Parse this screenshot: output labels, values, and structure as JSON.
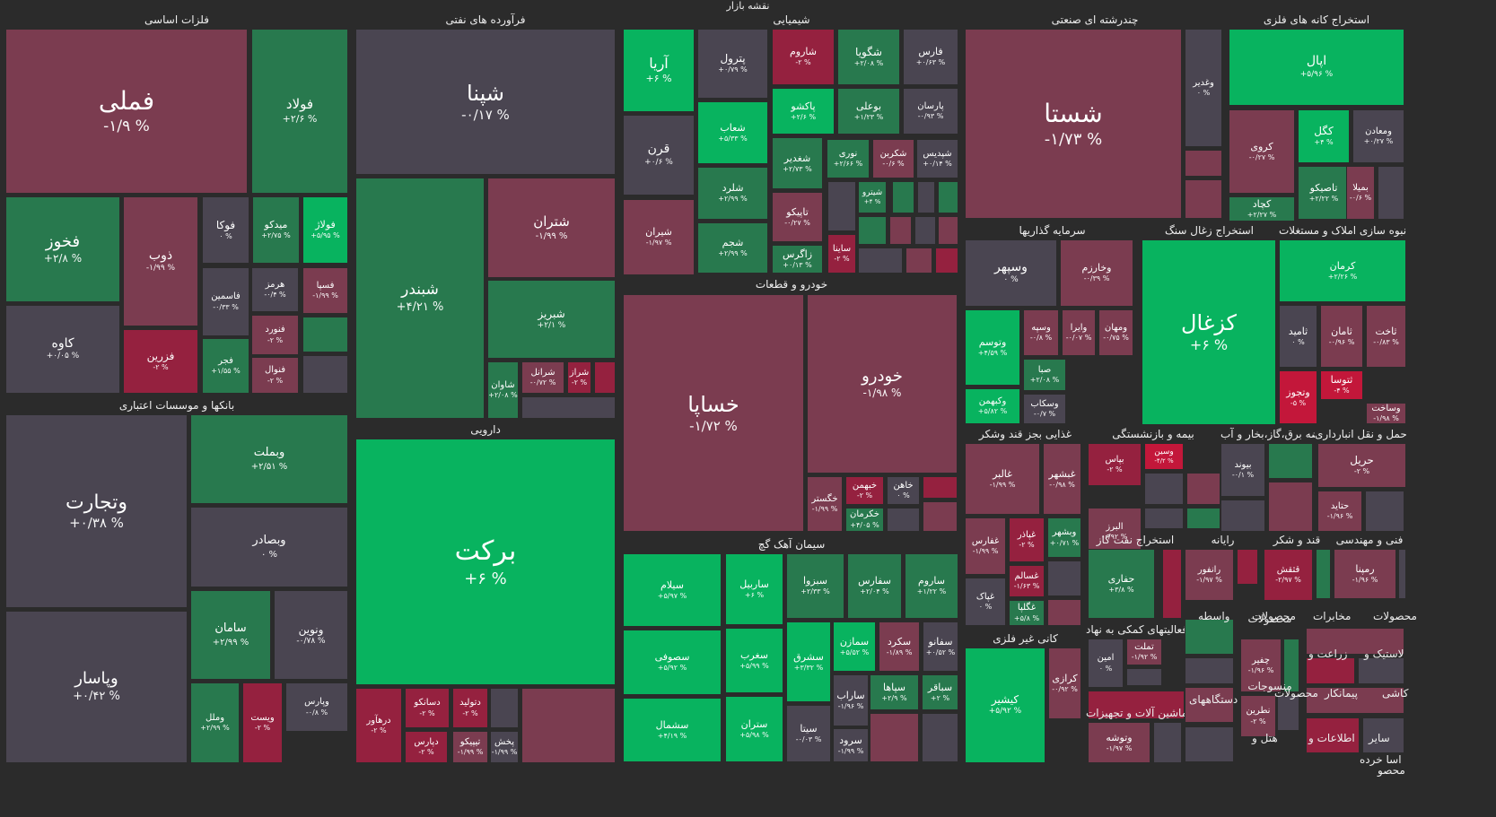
{
  "page_title": "نقشه بازار",
  "colors": {
    "bg": "#2b2b2b",
    "neutral": "#4a4551",
    "light_green": "#1f8a4c",
    "mid_green": "#28794e",
    "strong_green": "#08b35f",
    "light_red": "#7b3c50",
    "red": "#95213f",
    "strong_red": "#c3173a"
  },
  "sectors": [
    {
      "name": "فلزات اساسی",
      "tiles": [
        {
          "sym": "فملی",
          "chg": "-۱/۹ %"
        },
        {
          "sym": "فولاد",
          "chg": "+۲/۶ %"
        },
        {
          "sym": "فخوز",
          "chg": "+۲/۸ %"
        },
        {
          "sym": "ذوب",
          "chg": "-۱/۹۹ %"
        },
        {
          "sym": "فوکا",
          "chg": "۰ %"
        },
        {
          "sym": "میدکو",
          "chg": "+۲/۷۵ %"
        },
        {
          "sym": "فولاژ",
          "chg": "+۵/۹۵ %"
        },
        {
          "sym": "کاوه",
          "chg": "+۰/۰۵ %"
        },
        {
          "sym": "فزرین",
          "chg": "-۲ %"
        },
        {
          "sym": "فاسمین",
          "chg": "-۰/۳۳ %"
        },
        {
          "sym": "هرمز",
          "chg": "-۰/۴ %"
        },
        {
          "sym": "فسپا",
          "chg": "-۱/۹۹ %"
        },
        {
          "sym": "فنورد",
          "chg": "-۲ %"
        },
        {
          "sym": "فجر",
          "chg": "+۱/۵۵ %"
        },
        {
          "sym": "فنوال",
          "chg": "-۲ %"
        }
      ]
    },
    {
      "name": "فرآورده های نفتی",
      "tiles": [
        {
          "sym": "شپنا",
          "chg": "-۰/۱۷ %"
        },
        {
          "sym": "شبندر",
          "chg": "+۴/۲۱ %"
        },
        {
          "sym": "شتران",
          "chg": "-۱/۹۹ %"
        },
        {
          "sym": "شبریز",
          "chg": "+۲/۱ %"
        },
        {
          "sym": "شاوان",
          "chg": "+۲/۰۸ %"
        },
        {
          "sym": "شرانل",
          "chg": "-۰/۷۲ %"
        },
        {
          "sym": "شراز",
          "chg": "-۲ %"
        }
      ]
    },
    {
      "name": "شیمیایی",
      "tiles": [
        {
          "sym": "آریا",
          "chg": "+۶ %"
        },
        {
          "sym": "پترول",
          "chg": "+۰/۷۹ %"
        },
        {
          "sym": "شاروم",
          "chg": "-۲ %"
        },
        {
          "sym": "شگویا",
          "chg": "+۲/۰۸ %"
        },
        {
          "sym": "فارس",
          "chg": "+۰/۶۳ %"
        },
        {
          "sym": "قرن",
          "chg": "+۰/۶ %"
        },
        {
          "sym": "شغدیر",
          "chg": "+۲/۷۳ %"
        },
        {
          "sym": "پاکشو",
          "chg": "+۲/۶ %"
        },
        {
          "sym": "بوعلی",
          "chg": "+۱/۲۳ %"
        },
        {
          "sym": "پارسان",
          "chg": "-۰/۹۳ %"
        },
        {
          "sym": "شپدیس",
          "chg": "+۰/۱۴ %"
        },
        {
          "sym": "شیران",
          "chg": "-۱/۹۷ %"
        },
        {
          "sym": "شجم",
          "chg": "+۲/۹۹ %"
        },
        {
          "sym": "شلرد",
          "chg": "+۲/۹۹ %"
        },
        {
          "sym": "شعاب",
          "chg": "+۵/۳۳ %"
        },
        {
          "sym": "نوری",
          "chg": "+۲/۶۶ %"
        },
        {
          "sym": "شکربن",
          "chg": "-۰/۶ %"
        },
        {
          "sym": "تاپیکو",
          "chg": "-۰/۲۷ %"
        },
        {
          "sym": "زاگرس",
          "chg": "+۰/۱۳ %"
        },
        {
          "sym": "شیترو",
          "chg": "+۴ %"
        },
        {
          "sym": "ساینا",
          "chg": "-۲ %"
        }
      ]
    },
    {
      "name": "خودرو و قطعات",
      "tiles": [
        {
          "sym": "خساپا",
          "chg": "-۱/۷۲ %"
        },
        {
          "sym": "خودرو",
          "chg": "-۱/۹۸ %"
        },
        {
          "sym": "خگستر",
          "chg": "-۱/۹۹ %"
        },
        {
          "sym": "خبهمن",
          "chg": "-۲ %"
        },
        {
          "sym": "خاهن",
          "chg": "۰ %"
        },
        {
          "sym": "خکرمان",
          "chg": "+۴/۰۵ %"
        }
      ]
    },
    {
      "name": "سیمان آهک گچ",
      "tiles": [
        {
          "sym": "سیلام",
          "chg": "+۵/۹۷ %"
        },
        {
          "sym": "ساربیل",
          "chg": "+۶ %"
        },
        {
          "sym": "سبزوا",
          "chg": "+۲/۳۳ %"
        },
        {
          "sym": "سفارس",
          "chg": "+۲/۰۴ %"
        },
        {
          "sym": "ساروم",
          "chg": "+۱/۲۲ %"
        },
        {
          "sym": "سصوفی",
          "chg": "+۵/۹۲ %"
        },
        {
          "sym": "سغرب",
          "chg": "+۵/۹۹ %"
        },
        {
          "sym": "سشرق",
          "chg": "+۳/۳۲ %"
        },
        {
          "sym": "سمازن",
          "chg": "+۵/۵۲ %"
        },
        {
          "sym": "سکرد",
          "chg": "-۱/۸۹ %"
        },
        {
          "sym": "سفانو",
          "chg": "+۰/۵۲ %"
        },
        {
          "sym": "سشمال",
          "chg": "+۴/۱۹ %"
        },
        {
          "sym": "ستران",
          "chg": "+۵/۹۸ %"
        },
        {
          "sym": "سیتا",
          "chg": "-۰/۰۳ %"
        },
        {
          "sym": "ساراب",
          "chg": "-۱/۹۶ %"
        },
        {
          "sym": "سپاها",
          "chg": "+۲/۹ %"
        },
        {
          "sym": "سباقر",
          "chg": "+۲ %"
        },
        {
          "sym": "سرود",
          "chg": "-۱/۹۹ %"
        }
      ]
    },
    {
      "name": "بانکها و موسسات اعتباری",
      "tiles": [
        {
          "sym": "وتجارت",
          "chg": "+۰/۳۸ %"
        },
        {
          "sym": "وبملت",
          "chg": "+۲/۵۱ %"
        },
        {
          "sym": "وبصادر",
          "chg": "۰ %"
        },
        {
          "sym": "وپاسار",
          "chg": "+۰/۴۲ %"
        },
        {
          "sym": "سامان",
          "chg": "+۲/۹۹ %"
        },
        {
          "sym": "ونوین",
          "chg": "-۰/۷۸ %"
        },
        {
          "sym": "وملل",
          "chg": "+۲/۹۹ %"
        },
        {
          "sym": "ویست",
          "chg": "-۲ %"
        },
        {
          "sym": "وپارس",
          "chg": "-۰/۸ %"
        }
      ]
    },
    {
      "name": "دارویی",
      "tiles": [
        {
          "sym": "برکت",
          "chg": "+۶ %"
        },
        {
          "sym": "درهآور",
          "chg": "-۲ %"
        },
        {
          "sym": "دسانکو",
          "chg": "-۲ %"
        },
        {
          "sym": "دتولید",
          "chg": "-۲ %"
        },
        {
          "sym": "دپارس",
          "chg": "-۲ %"
        },
        {
          "sym": "تیپیکو",
          "chg": "-۱/۹۹ %"
        },
        {
          "sym": "پخش",
          "chg": "-۱/۹۹ %"
        }
      ]
    },
    {
      "name": "چندرشته ای صنعتی",
      "tiles": [
        {
          "sym": "شستا",
          "chg": "-۱/۷۳ %"
        },
        {
          "sym": "وغدیر",
          "chg": "۰ %"
        }
      ]
    },
    {
      "name": "استخراج کانه های فلزی",
      "tiles": [
        {
          "sym": "اپال",
          "chg": "+۵/۹۶ %"
        },
        {
          "sym": "کروی",
          "chg": "-۰/۲۷ %"
        },
        {
          "sym": "کگل",
          "chg": "+۴ %"
        },
        {
          "sym": "ومعادن",
          "chg": "+۰/۲۷ %"
        },
        {
          "sym": "کچاد",
          "chg": "+۲/۲۷ %"
        },
        {
          "sym": "تاصیکو",
          "chg": "+۲/۲۲ %"
        },
        {
          "sym": "بمیلا",
          "chg": "-۰/۶ %"
        }
      ]
    },
    {
      "name": "سرمایه گذاریها",
      "tiles": [
        {
          "sym": "وسپهر",
          "chg": "۰ %"
        },
        {
          "sym": "وخارزم",
          "chg": "-۰/۳۹ %"
        },
        {
          "sym": "وتوسم",
          "chg": "+۴/۵۹ %"
        },
        {
          "sym": "وسپه",
          "chg": "-۰/۸ %"
        },
        {
          "sym": "وایرا",
          "chg": "-۰/۰۷ %"
        },
        {
          "sym": "ومهان",
          "chg": "-۰/۷۵ %"
        },
        {
          "sym": "صبا",
          "chg": "+۲/۰۸ %"
        },
        {
          "sym": "وکبهمن",
          "chg": "+۵/۸۲ %"
        },
        {
          "sym": "وسکاب",
          "chg": "-۰/۷ %"
        }
      ]
    },
    {
      "name": "استخراج زغال سنگ",
      "tiles": [
        {
          "sym": "کزغال",
          "chg": "+۶ %"
        }
      ]
    },
    {
      "name": "انبوه سازی املاک و مستغلات",
      "tiles": [
        {
          "sym": "کرمان",
          "chg": "+۲/۲۶ %"
        },
        {
          "sym": "ثامید",
          "chg": "۰ %"
        },
        {
          "sym": "ثامان",
          "chg": "-۰/۹۶ %"
        },
        {
          "sym": "ثاخت",
          "chg": "-۰/۸۳ %"
        },
        {
          "sym": "ثتوسا",
          "chg": "-۴ %"
        },
        {
          "sym": "وتجوز",
          "chg": "-۵ %"
        },
        {
          "sym": "وساخت",
          "chg": "-۱/۹۸ %"
        }
      ]
    },
    {
      "name": "غذایی بجز قند وشکر",
      "tiles": [
        {
          "sym": "غالبر",
          "chg": "-۱/۹۹ %"
        },
        {
          "sym": "غبشهر",
          "chg": "-۰/۹۸ %"
        },
        {
          "sym": "غفارس",
          "chg": "-۱/۹۹ %"
        },
        {
          "sym": "غپاذر",
          "chg": "-۲ %"
        },
        {
          "sym": "وبشهر",
          "chg": "+۰/۷۱ %"
        },
        {
          "sym": "غسالم",
          "chg": "-۱/۶۳ %"
        },
        {
          "sym": "غپاک",
          "chg": "۰ %"
        },
        {
          "sym": "غگلپا",
          "chg": "+۵/۸ %"
        }
      ]
    },
    {
      "name": "بیمه و بازنشستگی",
      "tiles": [
        {
          "sym": "بپاس",
          "chg": "-۲ %"
        },
        {
          "sym": "وسین",
          "chg": "-۴/۲ %"
        },
        {
          "sym": "البرز",
          "chg": "-۰/۹۲ %"
        }
      ]
    },
    {
      "name": "عرضه برق،گاز،بخار و آب",
      "tiles": [
        {
          "sym": "بیوند",
          "chg": "-۰/۱ %"
        }
      ]
    },
    {
      "name": "حمل و نقل انبارداری",
      "tiles": [
        {
          "sym": "حریل",
          "chg": "-۲ %"
        },
        {
          "sym": "حتاید",
          "chg": "-۱/۹۶ %"
        }
      ]
    },
    {
      "name": "کانی غیر فلزی",
      "tiles": [
        {
          "sym": "کیشیر",
          "chg": "+۵/۹۲ %"
        },
        {
          "sym": "کرازی",
          "chg": "-۰/۹۲ %"
        }
      ]
    },
    {
      "name": "استخراج نفت گاز",
      "tiles": [
        {
          "sym": "حفاری",
          "chg": "+۳/۸ %"
        }
      ]
    },
    {
      "name": "فعالیتهای کمکی به نهاد",
      "tiles": [
        {
          "sym": "امین",
          "chg": "۰ %"
        },
        {
          "sym": "تملت",
          "chg": "-۱/۹۲ %"
        }
      ]
    },
    {
      "name": "ماشین آلات و تجهیزات",
      "tiles": [
        {
          "sym": "وتوشه",
          "chg": "-۱/۹۷ %"
        }
      ]
    },
    {
      "name": "رایانه",
      "tiles": [
        {
          "sym": "رانفور",
          "chg": "-۱/۹۷ %"
        }
      ]
    },
    {
      "name": "قند و شکر",
      "tiles": [
        {
          "sym": "قثقش",
          "chg": "-۲/۹۷ %"
        }
      ]
    },
    {
      "name": "فنی و مهندسی",
      "tiles": [
        {
          "sym": "رمپنا",
          "chg": "-۱/۹۶ %"
        }
      ]
    },
    {
      "name": "محصولات",
      "tiles": [
        {
          "sym": "چفیر",
          "chg": "-۱/۹۶ %"
        }
      ]
    },
    {
      "name": "منسوجات",
      "tiles": [
        {
          "sym": "نطرین",
          "chg": "-۲ %"
        }
      ]
    }
  ],
  "minor_labels": [
    "واسطه",
    "محصولات",
    "مخابرات",
    "محصولات",
    "زراعت و",
    "لاستیک و",
    "دستگاههای",
    "کاشی",
    "پیمانکار",
    "محصولات",
    "هتل و",
    "سایر",
    "اطلاعات و",
    "اسا خرده",
    "محصو"
  ]
}
